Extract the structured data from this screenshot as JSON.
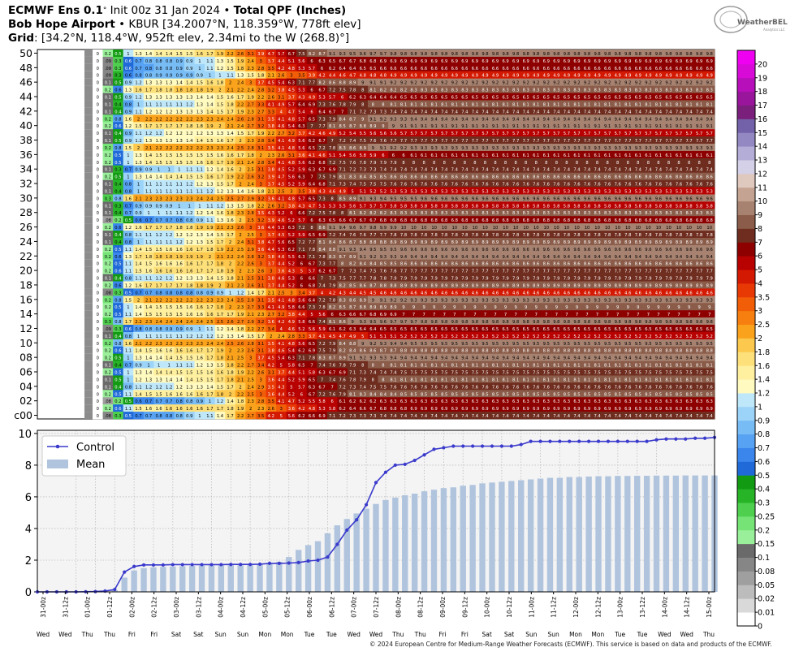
{
  "header": {
    "model": "ECMWF Ens 0.1",
    "deg": "°",
    "init": "Init 00z 31 Jan 2024",
    "bullet": "•",
    "product": "Total QPF (Inches)",
    "station": "Bob Hope Airport",
    "station_info": "KBUR [34.2007°N, 118.359°W, 778ft elev]",
    "grid_label": "Grid",
    "grid_info": ": [34.2°N, 118.4°W, 952ft elev, 2.34mi to the W (268.8)°]"
  },
  "logo": {
    "text_big": "WeatherBELL",
    "text_small": "Analytics LLC"
  },
  "copyright": "© 2024 European Centre for Medium-Range Weather Forecasts (ECMWF). This service is based on data and products of the ECMWF.",
  "colors": {
    "control_line": "#3a3acc",
    "mean_bar": "#b0c4de",
    "panel_bg": "#f4f4f4"
  },
  "chart_data": [
    {
      "type": "heatmap",
      "title": "Ensemble member cumulative QPF table",
      "y_tick_labels": [
        "50",
        "48",
        "46",
        "44",
        "42",
        "40",
        "38",
        "36",
        "34",
        "32",
        "30",
        "28",
        "26",
        "24",
        "22",
        "20",
        "18",
        "16",
        "14",
        "12",
        "10",
        "08",
        "06",
        "04",
        "02",
        "c00"
      ],
      "member_count": 51,
      "time_step_count": 61,
      "final_values_by_member": [
        7.4,
        6.9,
        6.3,
        8.5,
        7.6,
        8.1,
        7.5,
        8.1,
        9.4,
        8.8,
        9.5,
        5.2,
        6.5,
        9.8,
        7.0,
        9.0,
        9.3,
        4.6,
        8.9,
        7.9,
        7.7,
        8.6,
        9.4,
        9.6,
        8.9,
        7.8,
        10.0,
        6.8,
        8.3,
        5.8,
        9.6,
        5.3,
        7.6,
        8.6,
        7.4,
        8.0,
        6.1,
        9.3,
        7.7,
        5.7,
        9.1,
        9.4,
        7.4,
        8.1,
        6.5,
        8.3,
        9.2,
        4.9,
        6.6,
        6.9,
        9.8
      ],
      "colorbar_levels": [
        "0",
        "0.01",
        "0.02",
        "0.05",
        "0.08",
        "0.1",
        "0.15",
        "0.2",
        "0.25",
        "0.3",
        "0.4",
        "0.5",
        "0.6",
        "0.7",
        "0.8",
        "0.9",
        "1",
        "1.2",
        "1.4",
        "1.6",
        "1.8",
        "2",
        "2.5",
        "3",
        "3.5",
        "4",
        "5",
        "6",
        "7",
        "8",
        "9",
        "10",
        "11",
        "12",
        "13",
        "14",
        "15",
        "16",
        "17",
        "18",
        "19",
        "20"
      ],
      "colorbar_colors": [
        "#ffffff",
        "#d9d9d9",
        "#bcbcbc",
        "#9f9f9f",
        "#868686",
        "#6a6a6a",
        "#9af09a",
        "#75e375",
        "#4ecf4e",
        "#27b427",
        "#129a12",
        "#1f6ad8",
        "#3a86ec",
        "#57a2f3",
        "#78bcf6",
        "#9cd3f8",
        "#bfe7fa",
        "#fffac0",
        "#fff0a0",
        "#fde07a",
        "#fcc94e",
        "#faa21b",
        "#f77f0f",
        "#f25d07",
        "#e83905",
        "#d41902",
        "#b80101",
        "#8e0000",
        "#6f2d1f",
        "#8a5c49",
        "#a78270",
        "#c4a392",
        "#dfc8bd",
        "#d4d0e8",
        "#b4add7",
        "#9388c2",
        "#7361a9",
        "#7a1f7c",
        "#99159b",
        "#b70fba",
        "#d70ad8",
        "#f000f0"
      ],
      "colorbar_tick_labels": [
        "0",
        "0.01",
        "0.02",
        "0.05",
        "0.08",
        "0.1",
        "0.15",
        "0.2",
        "0.25",
        "0.3",
        "0.4",
        "0.5",
        "0.6",
        "0.7",
        "0.8",
        "0.9",
        "1",
        "1.2",
        "1.4",
        "1.6",
        "1.8",
        "2",
        "2.5",
        "3",
        "3.5",
        "4",
        "5",
        "6",
        "7",
        "8",
        "9",
        "10",
        "11",
        "12",
        "13",
        "14",
        "15",
        "16",
        "17",
        "18",
        "19",
        "20"
      ]
    },
    {
      "type": "line",
      "legend": [
        "Control",
        "Mean"
      ],
      "legend_position": "top-left",
      "ylim": [
        0,
        10.2
      ],
      "y_ticks": [
        "0",
        "2",
        "4",
        "6",
        "8",
        "10"
      ],
      "x_tick_labels": [
        "31-00z",
        "31-12z",
        "01-00z",
        "01-12z",
        "02-00z",
        "02-12z",
        "03-00z",
        "03-12z",
        "04-00z",
        "04-12z",
        "05-00z",
        "05-12z",
        "06-00z",
        "06-12z",
        "07-00z",
        "07-12z",
        "08-00z",
        "08-12z",
        "09-00z",
        "09-12z",
        "10-00z",
        "10-12z",
        "11-00z",
        "11-12z",
        "12-00z",
        "12-12z",
        "13-00z",
        "13-12z",
        "14-00z",
        "14-12z",
        "15-00z"
      ],
      "day_labels": [
        "Wed",
        "Wed",
        "Thu",
        "Thu",
        "Fri",
        "Fri",
        "Sat",
        "Sat",
        "Sun",
        "Sun",
        "Mon",
        "Mon",
        "Tue",
        "Tue",
        "Wed",
        "Wed",
        "Thu",
        "Thu",
        "Fri",
        "Fri",
        "Sat",
        "Sat",
        "Sun",
        "Sun",
        "Mon",
        "Mon",
        "Tue",
        "Tue",
        "Wed",
        "Wed",
        "Thu"
      ],
      "series": [
        {
          "name": "Control",
          "values": [
            0,
            0,
            0,
            0,
            0,
            0.01,
            0.02,
            0.05,
            0.15,
            1.25,
            1.6,
            1.7,
            1.7,
            1.7,
            1.72,
            1.72,
            1.72,
            1.72,
            1.72,
            1.72,
            1.73,
            1.73,
            1.73,
            1.75,
            1.8,
            1.8,
            1.82,
            1.85,
            1.95,
            2.0,
            2.2,
            3.0,
            3.9,
            4.55,
            5.5,
            6.9,
            7.55,
            8.0,
            8.05,
            8.3,
            8.65,
            9.0,
            9.1,
            9.2,
            9.2,
            9.2,
            9.2,
            9.2,
            9.2,
            9.2,
            9.3,
            9.5,
            9.5,
            9.5,
            9.5,
            9.5,
            9.5,
            9.5,
            9.5,
            9.5,
            9.5,
            9.5,
            9.5,
            9.5,
            9.6,
            9.65,
            9.65,
            9.65,
            9.7,
            9.7,
            9.75
          ]
        },
        {
          "name": "Mean",
          "values": [
            0,
            0,
            0,
            0,
            0,
            0.01,
            0.02,
            0.03,
            0.1,
            0.9,
            1.35,
            1.5,
            1.55,
            1.58,
            1.6,
            1.62,
            1.64,
            1.66,
            1.67,
            1.68,
            1.7,
            1.72,
            1.75,
            1.78,
            1.82,
            1.9,
            2.2,
            2.65,
            2.95,
            3.2,
            3.7,
            4.2,
            4.6,
            4.95,
            5.25,
            5.55,
            5.8,
            5.95,
            6.1,
            6.2,
            6.35,
            6.45,
            6.55,
            6.6,
            6.7,
            6.75,
            6.85,
            6.9,
            6.95,
            7.0,
            7.05,
            7.1,
            7.15,
            7.2,
            7.2,
            7.25,
            7.25,
            7.28,
            7.3,
            7.3,
            7.32,
            7.32,
            7.33,
            7.33,
            7.34,
            7.34,
            7.34,
            7.35,
            7.35,
            7.35,
            7.35
          ]
        }
      ]
    }
  ]
}
